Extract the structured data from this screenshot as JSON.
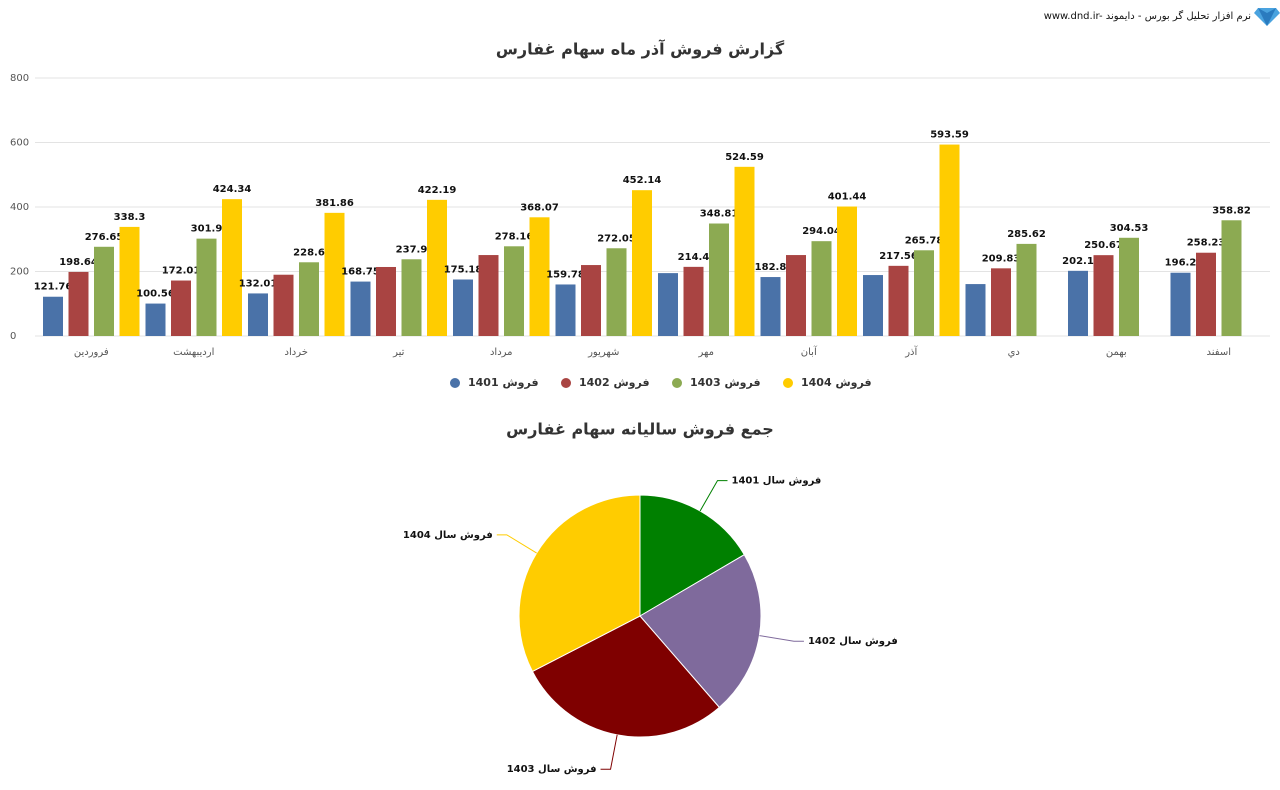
{
  "header": {
    "text": "www.dnd.ir- نرم افزار تحلیل گر بورس - دایموند"
  },
  "chart_data": [
    {
      "type": "bar",
      "title": "گزارش فروش آذر ماه سهام غفارس",
      "categories": [
        "فروردین",
        "اردیبهشت",
        "خرداد",
        "تیر",
        "مرداد",
        "شهریور",
        "مهر",
        "آبان",
        "آذر",
        "دي",
        "بهمن",
        "اسفند"
      ],
      "series": [
        {
          "name": "فروش 1401",
          "color": "#4a72a8",
          "values": [
            121.76,
            100.56,
            132.01,
            168.75,
            175.18,
            159.78,
            195,
            182.8,
            189,
            161,
            202.1,
            196.2
          ],
          "value_labels": [
            "121.76",
            "100.56",
            "132.01",
            "168.75",
            "175.18",
            "159.78",
            null,
            "182.8",
            null,
            null,
            "202.1",
            "196.2"
          ]
        },
        {
          "name": "فروش 1402",
          "color": "#a94442",
          "values": [
            198.64,
            172.01,
            190,
            214,
            251,
            220,
            214.4,
            251,
            217.56,
            209.83,
            250.67,
            258.23
          ],
          "value_labels": [
            "198.64",
            "172.01",
            null,
            null,
            null,
            null,
            "214.4",
            null,
            "217.56",
            "209.83",
            "250.67",
            "258.23"
          ]
        },
        {
          "name": "فروش 1403",
          "color": "#8caa52",
          "values": [
            276.65,
            301.9,
            228.6,
            237.9,
            278.16,
            272.05,
            348.81,
            294.04,
            265.78,
            285.62,
            304.53,
            358.82
          ],
          "value_labels": [
            "276.65",
            "301.9",
            "228.6",
            "237.9",
            "278.16",
            "272.05",
            "348.81",
            "294.04",
            "265.78",
            "285.62",
            "304.53",
            "358.82"
          ]
        },
        {
          "name": "فروش 1404",
          "color": "#ffcc00",
          "values": [
            338.3,
            424.34,
            381.86,
            422.19,
            368.07,
            452.14,
            524.59,
            401.44,
            593.59,
            null,
            null,
            null
          ],
          "value_labels": [
            "338.3",
            "424.34",
            "381.86",
            "422.19",
            "368.07",
            "452.14",
            "524.59",
            "401.44",
            "593.59",
            null,
            null,
            null
          ]
        }
      ],
      "ylim": [
        0,
        800
      ],
      "yticks": [
        0,
        200,
        400,
        600,
        800
      ],
      "grid": true,
      "legend": "bottom"
    },
    {
      "type": "pie",
      "title": "جمع فروش سالیانه سهام غفارس",
      "categories": [
        "فروش سال 1401",
        "فروش سال 1402",
        "فروش سال 1403",
        "فروش سال 1404"
      ],
      "values": [
        1984.1,
        2647.3,
        3452.9,
        3906.5
      ],
      "colors": [
        "#008000",
        "#7f6a9c",
        "#7f0000",
        "#ffcc00"
      ]
    }
  ]
}
